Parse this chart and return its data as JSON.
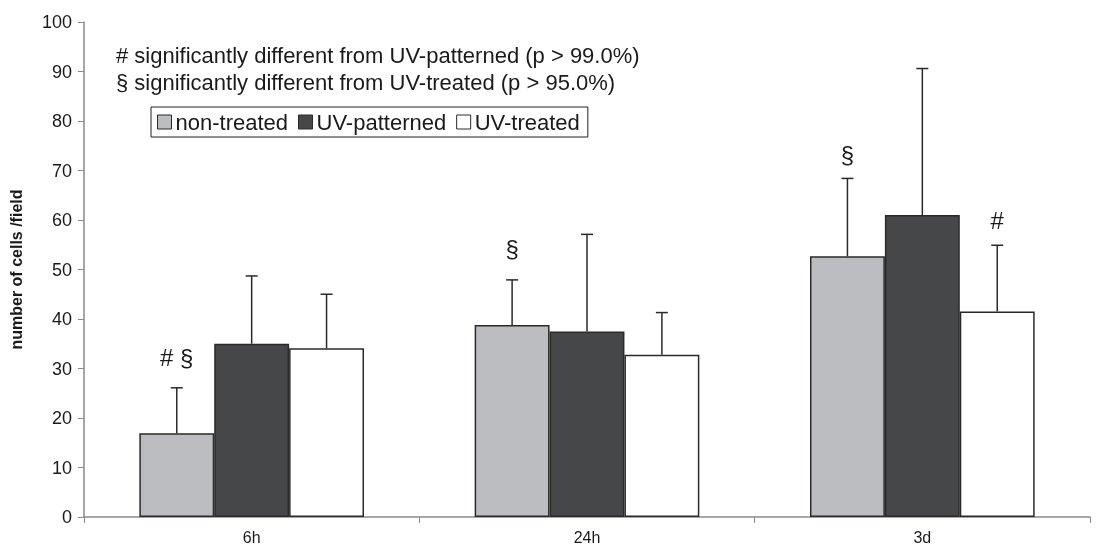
{
  "chart_data": {
    "type": "bar",
    "ylabel": "number of cells /field",
    "categories": [
      "6h",
      "24h",
      "3d"
    ],
    "series": [
      {
        "name": "non-treated",
        "color": "#bcbdc1",
        "values": [
          16.9,
          38.8,
          52.7
        ],
        "errors": [
          [
            16.9,
            26.1
          ],
          [
            38.8,
            47.9
          ],
          [
            52.7,
            68.4
          ]
        ]
      },
      {
        "name": "UV-patterned",
        "color": "#464749",
        "values": [
          35.0,
          37.5,
          61.0
        ],
        "errors": [
          [
            35.0,
            48.7
          ],
          [
            37.5,
            57.1
          ],
          [
            61.0,
            90.6
          ]
        ]
      },
      {
        "name": "UV-treated",
        "color": "#ffffff",
        "values": [
          34.1,
          32.8,
          41.5
        ],
        "errors": [
          [
            34.1,
            45.0
          ],
          [
            32.8,
            41.3
          ],
          [
            41.5,
            54.9
          ]
        ]
      }
    ],
    "ylim": [
      0,
      100
    ],
    "yticks": [
      0,
      10,
      20,
      30,
      40,
      50,
      60,
      70,
      80,
      90,
      100
    ],
    "legend": "top left",
    "annotations": [
      "# significantly different from UV-patterned (p > 99.0%)",
      "§ significantly different from UV-treated (p > 95.0%)",
      "# §",
      "§",
      "§",
      "#"
    ]
  }
}
